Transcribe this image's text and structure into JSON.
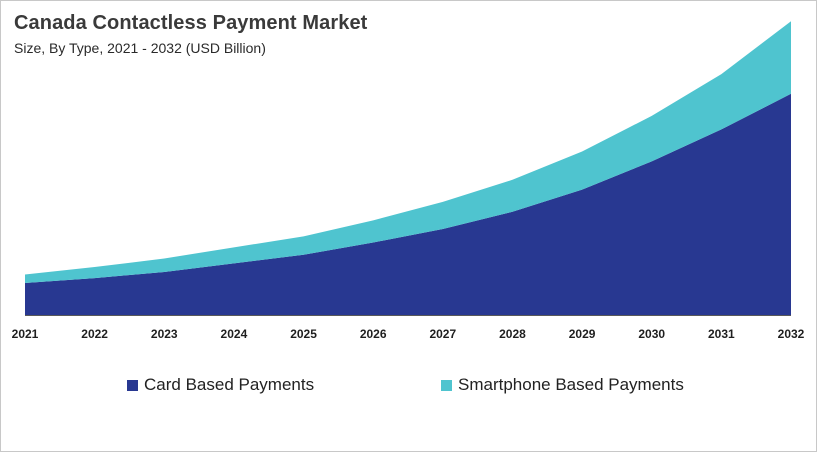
{
  "title": "Canada Contactless Payment Market",
  "subtitle": "Size, By Type, 2021 - 2032 (USD Billion)",
  "colors": {
    "card": "#283891",
    "smartphone": "#4fc4cf",
    "axis": "#595959"
  },
  "chart_data": {
    "type": "area",
    "stacked": true,
    "title": "Canada Contactless Payment Market",
    "subtitle": "Size, By Type, 2021 - 2032 (USD Billion)",
    "xlabel": "",
    "ylabel": "",
    "x": [
      "2021",
      "2022",
      "2023",
      "2024",
      "2025",
      "2026",
      "2027",
      "2028",
      "2029",
      "2030",
      "2031",
      "2032"
    ],
    "series": [
      {
        "name": "Card Based Payments",
        "color": "#283891",
        "values": [
          2.6,
          3.0,
          3.5,
          4.2,
          4.9,
          5.9,
          7.0,
          8.4,
          10.2,
          12.5,
          15.1,
          18.0
        ]
      },
      {
        "name": "Smartphone Based Payments",
        "color": "#4fc4cf",
        "values": [
          0.7,
          0.9,
          1.1,
          1.3,
          1.5,
          1.8,
          2.2,
          2.6,
          3.1,
          3.7,
          4.5,
          5.9
        ]
      }
    ],
    "ylim": [
      0,
      24
    ],
    "grid": false,
    "legend": "bottom"
  },
  "legend": {
    "items": [
      {
        "label": "Card Based Payments",
        "color": "#283891"
      },
      {
        "label": "Smartphone Based Payments",
        "color": "#4fc4cf"
      }
    ]
  }
}
